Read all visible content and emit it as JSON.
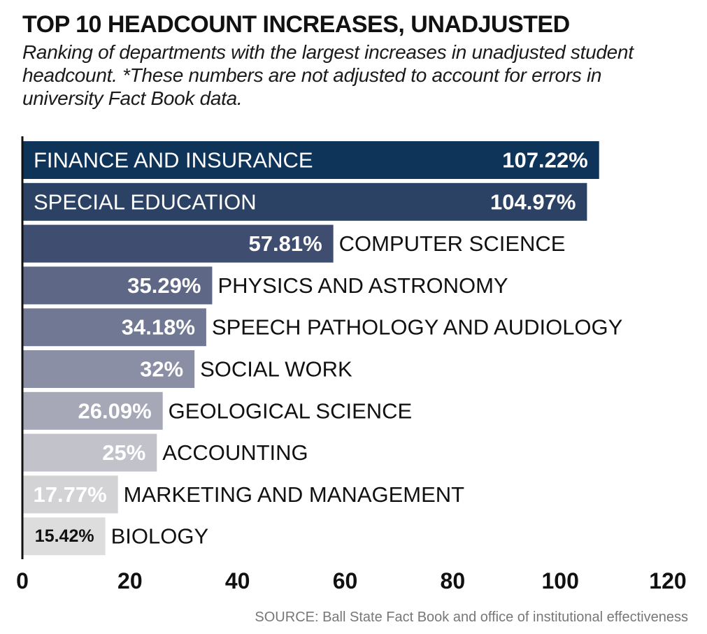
{
  "chart_data": {
    "type": "bar",
    "orientation": "horizontal",
    "title": "TOP 10 HEADCOUNT INCREASES, UNADJUSTED",
    "subtitle": "Ranking of departments with the largest increases in unadjusted student headcount. *These numbers are not adjusted to account for errors in university Fact Book data.",
    "categories": [
      "FINANCE AND INSURANCE",
      "SPECIAL EDUCATION",
      "COMPUTER SCIENCE",
      "PHYSICS AND ASTRONOMY",
      "SPEECH PATHOLOGY AND AUDIOLOGY",
      "SOCIAL WORK",
      "GEOLOGICAL SCIENCE",
      "ACCOUNTING",
      "MARKETING AND MANAGEMENT",
      "BIOLOGY"
    ],
    "values": [
      107.22,
      104.97,
      57.81,
      35.29,
      34.18,
      32,
      26.09,
      25,
      17.77,
      15.42
    ],
    "value_labels": [
      "107.22%",
      "104.97%",
      "57.81%",
      "35.29%",
      "34.18%",
      "32%",
      "26.09%",
      "25%",
      "17.77%",
      "15.42%"
    ],
    "colors": [
      "#0f3459",
      "#2c4264",
      "#3f4d70",
      "#5f6787",
      "#717893",
      "#8a8fa6",
      "#a6a8b7",
      "#c1c2ca",
      "#d3d3d6",
      "#dddddd"
    ],
    "label_colors": [
      "#ffffff",
      "#ffffff",
      "#ffffff",
      "#ffffff",
      "#ffffff",
      "#ffffff",
      "#ffffff",
      "#ffffff",
      "#ffffff",
      "#111111"
    ],
    "xlim": [
      0,
      120
    ],
    "xticks": [
      0,
      20,
      40,
      60,
      80,
      100,
      120
    ],
    "xlabel": "",
    "ylabel": "",
    "grid": false,
    "source": "SOURCE: Ball State Fact Book and office of institutional effectiveness"
  }
}
